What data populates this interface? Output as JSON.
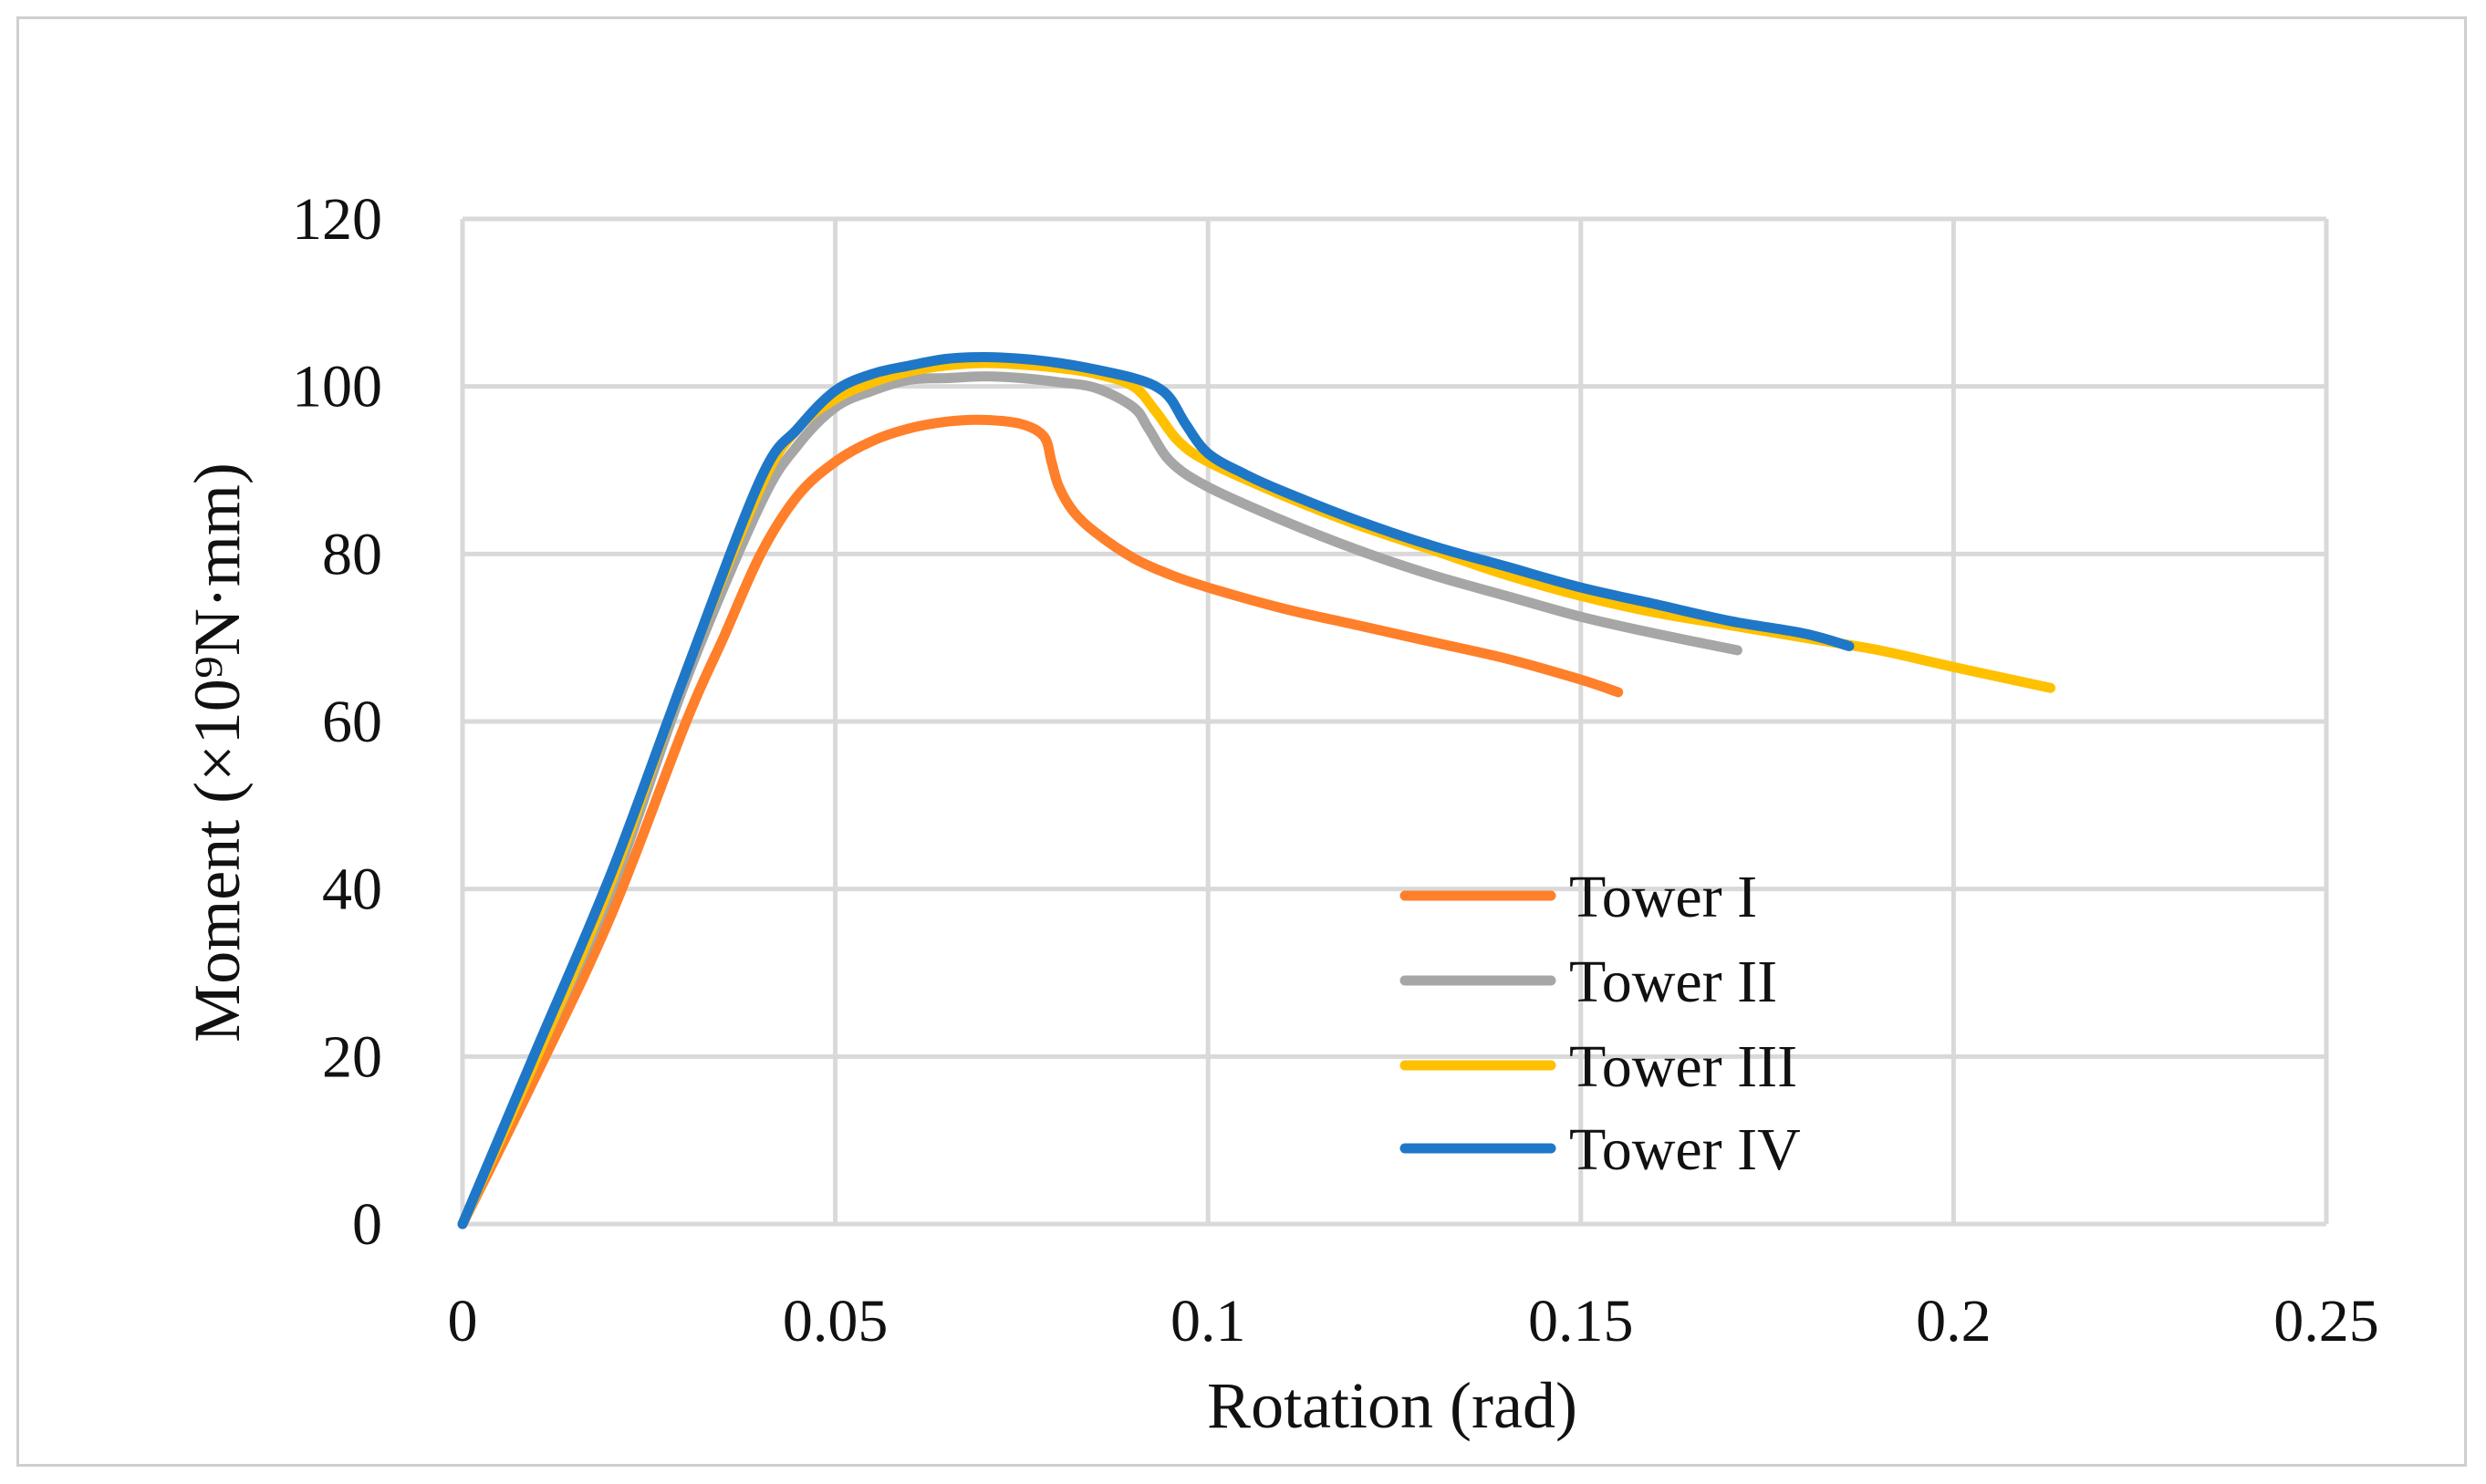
{
  "chart_data": {
    "type": "line",
    "title": "",
    "xlabel": "Rotation (rad)",
    "ylabel": "Moment (×10⁹N·mm)",
    "xlim": [
      0,
      0.25
    ],
    "ylim": [
      0,
      120
    ],
    "x_ticks": [
      "0",
      "0.05",
      "0.1",
      "0.15",
      "0.2",
      "0.25"
    ],
    "y_ticks": [
      "0",
      "20",
      "40",
      "60",
      "80",
      "100",
      "120"
    ],
    "x_tick_values": [
      0,
      0.05,
      0.1,
      0.15,
      0.2,
      0.25
    ],
    "y_tick_values": [
      0,
      20,
      40,
      60,
      80,
      100,
      120
    ],
    "grid": true,
    "legend_position": "lower-center",
    "series": [
      {
        "name": "Tower I",
        "color": "#ff7f2a",
        "points": [
          [
            0,
            0
          ],
          [
            0.01,
            18
          ],
          [
            0.02,
            37
          ],
          [
            0.03,
            60
          ],
          [
            0.035,
            70
          ],
          [
            0.04,
            80
          ],
          [
            0.045,
            87
          ],
          [
            0.05,
            91
          ],
          [
            0.055,
            93.5
          ],
          [
            0.06,
            95
          ],
          [
            0.065,
            95.8
          ],
          [
            0.07,
            96
          ],
          [
            0.075,
            95.5
          ],
          [
            0.078,
            94
          ],
          [
            0.079,
            91
          ],
          [
            0.08,
            88
          ],
          [
            0.082,
            85
          ],
          [
            0.085,
            82.5
          ],
          [
            0.09,
            79.5
          ],
          [
            0.095,
            77.5
          ],
          [
            0.1,
            76
          ],
          [
            0.11,
            73.5
          ],
          [
            0.12,
            71.5
          ],
          [
            0.13,
            69.5
          ],
          [
            0.14,
            67.5
          ],
          [
            0.15,
            65
          ],
          [
            0.155,
            63.5
          ]
        ]
      },
      {
        "name": "Tower II",
        "color": "#a6a6a6",
        "points": [
          [
            0,
            0
          ],
          [
            0.01,
            20
          ],
          [
            0.02,
            40
          ],
          [
            0.03,
            65
          ],
          [
            0.04,
            86
          ],
          [
            0.045,
            93
          ],
          [
            0.05,
            97.5
          ],
          [
            0.055,
            99.5
          ],
          [
            0.06,
            100.8
          ],
          [
            0.065,
            101
          ],
          [
            0.07,
            101.2
          ],
          [
            0.075,
            101
          ],
          [
            0.08,
            100.5
          ],
          [
            0.085,
            99.8
          ],
          [
            0.09,
            97.5
          ],
          [
            0.092,
            95
          ],
          [
            0.095,
            91
          ],
          [
            0.1,
            88
          ],
          [
            0.11,
            84
          ],
          [
            0.12,
            80.5
          ],
          [
            0.13,
            77.5
          ],
          [
            0.14,
            75
          ],
          [
            0.15,
            72.5
          ],
          [
            0.16,
            70.5
          ],
          [
            0.171,
            68.5
          ]
        ]
      },
      {
        "name": "Tower III",
        "color": "#ffc000",
        "points": [
          [
            0,
            0
          ],
          [
            0.01,
            20
          ],
          [
            0.02,
            41
          ],
          [
            0.03,
            66
          ],
          [
            0.04,
            88
          ],
          [
            0.045,
            95
          ],
          [
            0.05,
            98.5
          ],
          [
            0.055,
            100.5
          ],
          [
            0.06,
            101.8
          ],
          [
            0.065,
            102.5
          ],
          [
            0.07,
            102.8
          ],
          [
            0.075,
            102.6
          ],
          [
            0.08,
            102.2
          ],
          [
            0.085,
            101.5
          ],
          [
            0.09,
            100
          ],
          [
            0.093,
            97
          ],
          [
            0.096,
            93.5
          ],
          [
            0.1,
            91
          ],
          [
            0.11,
            87
          ],
          [
            0.12,
            83.5
          ],
          [
            0.13,
            80.5
          ],
          [
            0.14,
            77.5
          ],
          [
            0.15,
            75
          ],
          [
            0.16,
            73
          ],
          [
            0.17,
            71.5
          ],
          [
            0.18,
            70
          ],
          [
            0.19,
            68.5
          ],
          [
            0.2,
            66.5
          ],
          [
            0.213,
            64
          ]
        ]
      },
      {
        "name": "Tower IV",
        "color": "#1f77c8",
        "points": [
          [
            0,
            0
          ],
          [
            0.01,
            21
          ],
          [
            0.02,
            42
          ],
          [
            0.03,
            66
          ],
          [
            0.04,
            89
          ],
          [
            0.045,
            95
          ],
          [
            0.05,
            99.5
          ],
          [
            0.055,
            101.5
          ],
          [
            0.06,
            102.5
          ],
          [
            0.065,
            103.3
          ],
          [
            0.07,
            103.5
          ],
          [
            0.075,
            103.3
          ],
          [
            0.08,
            102.8
          ],
          [
            0.085,
            102
          ],
          [
            0.09,
            101
          ],
          [
            0.093,
            100
          ],
          [
            0.095,
            98.5
          ],
          [
            0.097,
            95.5
          ],
          [
            0.1,
            92
          ],
          [
            0.105,
            89.5
          ],
          [
            0.11,
            87.5
          ],
          [
            0.12,
            84
          ],
          [
            0.13,
            81
          ],
          [
            0.14,
            78.5
          ],
          [
            0.15,
            76
          ],
          [
            0.16,
            74
          ],
          [
            0.17,
            72
          ],
          [
            0.18,
            70.5
          ],
          [
            0.186,
            69
          ]
        ]
      }
    ]
  }
}
